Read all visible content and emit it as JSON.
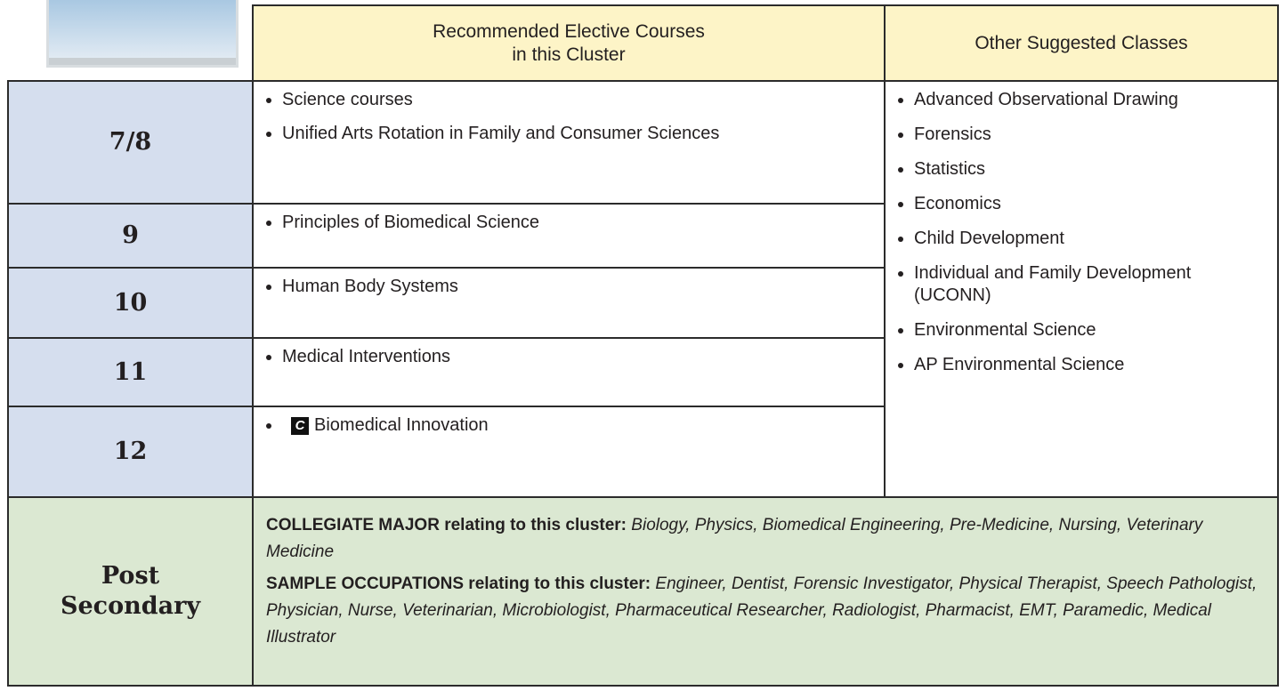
{
  "header": {
    "recommended_lines": [
      "Recommended Elective Courses",
      "in this Cluster"
    ],
    "other": "Other Suggested Classes"
  },
  "grades": [
    {
      "grade": "7/8",
      "courses": [
        {
          "text": "Science courses"
        },
        {
          "text": "Unified Arts Rotation in Family and Consumer Sciences"
        }
      ]
    },
    {
      "grade": "9",
      "courses": [
        {
          "text": "Principles of Biomedical Science"
        }
      ]
    },
    {
      "grade": "10",
      "courses": [
        {
          "text": "Human Body Systems"
        }
      ]
    },
    {
      "grade": "11",
      "courses": [
        {
          "text": "Medical Interventions"
        }
      ]
    },
    {
      "grade": "12",
      "courses": [
        {
          "badge": "C",
          "text": "Biomedical Innovation"
        }
      ]
    }
  ],
  "other_classes": [
    "Advanced Observational Drawing",
    "Forensics",
    "Statistics",
    "Economics",
    "Child Development",
    "Individual and Family Development (UCONN)",
    "Environmental Science",
    "AP Environmental Science"
  ],
  "post_secondary": {
    "label_lines": [
      "Post",
      "Secondary"
    ],
    "paragraphs": [
      {
        "lead": "COLLEGIATE MAJOR relating to this cluster:",
        "items": "Biology, Physics, Biomedical Engineering, Pre-Medicine, Nursing, Veterinary Medicine"
      },
      {
        "lead": "SAMPLE OCCUPATIONS relating to this cluster:",
        "items": "Engineer, Dentist, Forensic Investigator, Physical Therapist, Speech Pathologist, Physician, Nurse, Veterinarian, Microbiologist, Pharmaceutical Researcher, Radiologist, Pharmacist, EMT, Paramedic, Medical Illustrator"
      }
    ]
  }
}
